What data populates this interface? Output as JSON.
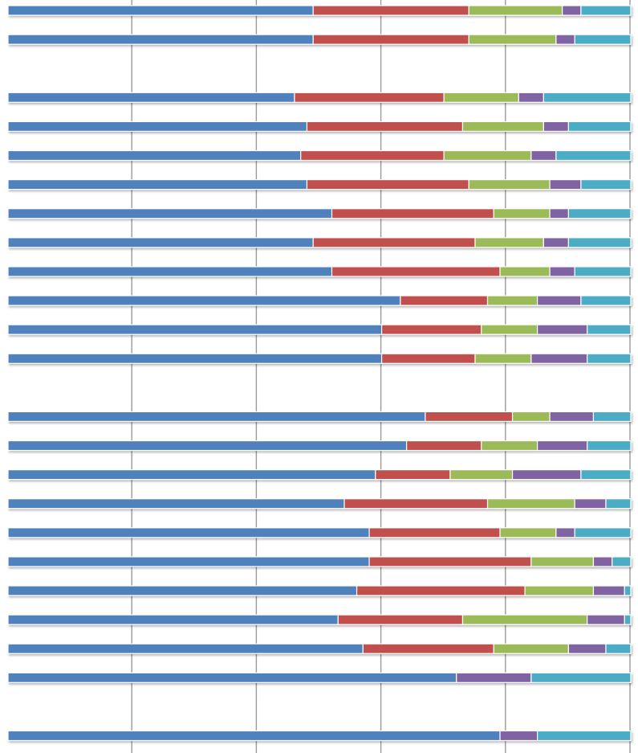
{
  "chart_data": {
    "type": "bar",
    "orientation": "horizontal",
    "stacked": true,
    "percent_stacked": true,
    "title": "",
    "xlabel": "",
    "ylabel": "",
    "xlim": [
      0,
      100
    ],
    "grid": true,
    "legend": "none",
    "colors": [
      "#4f81bd",
      "#c0504d",
      "#9bbb59",
      "#8064a2",
      "#4bacc6"
    ],
    "rows": [
      {
        "segments": [
          49,
          25,
          15,
          3,
          8
        ]
      },
      {
        "segments": [
          49,
          25,
          14,
          3,
          9
        ]
      },
      {
        "gap": true
      },
      {
        "segments": [
          46,
          24,
          12,
          4,
          14
        ]
      },
      {
        "segments": [
          48,
          25,
          13,
          4,
          10
        ]
      },
      {
        "segments": [
          47,
          23,
          14,
          4,
          12
        ]
      },
      {
        "segments": [
          48,
          26,
          13,
          5,
          8
        ]
      },
      {
        "segments": [
          52,
          26,
          9,
          3,
          10
        ]
      },
      {
        "segments": [
          49,
          26,
          11,
          4,
          10
        ]
      },
      {
        "segments": [
          52,
          27,
          8,
          4,
          9
        ]
      },
      {
        "segments": [
          63,
          14,
          8,
          7,
          8
        ]
      },
      {
        "segments": [
          60,
          16,
          9,
          8,
          7
        ]
      },
      {
        "segments": [
          60,
          15,
          9,
          9,
          7
        ]
      },
      {
        "gap": true
      },
      {
        "segments": [
          67,
          14,
          6,
          7,
          6
        ]
      },
      {
        "segments": [
          64,
          12,
          9,
          8,
          7
        ]
      },
      {
        "segments": [
          59,
          12,
          10,
          11,
          8
        ]
      },
      {
        "segments": [
          54,
          23,
          14,
          5,
          4
        ]
      },
      {
        "segments": [
          58,
          21,
          9,
          3,
          9
        ]
      },
      {
        "segments": [
          58,
          26,
          10,
          3,
          3
        ]
      },
      {
        "segments": [
          56,
          27,
          11,
          5,
          1
        ]
      },
      {
        "segments": [
          53,
          20,
          20,
          6,
          1
        ]
      },
      {
        "segments": [
          57,
          21,
          12,
          6,
          4
        ]
      },
      {
        "segments": [
          72,
          0,
          0,
          12,
          16
        ]
      },
      {
        "gap": true
      },
      {
        "segments": [
          79,
          0,
          0,
          6,
          15
        ]
      }
    ]
  }
}
